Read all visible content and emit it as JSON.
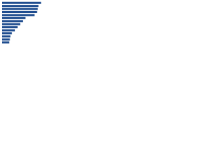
{
  "chart_data": {
    "type": "hbar",
    "categories": [
      null,
      null,
      null,
      null,
      null,
      null,
      null,
      null,
      null,
      null,
      null,
      null,
      null,
      null
    ],
    "values": [
      60,
      56,
      55,
      54,
      50,
      36,
      32,
      28,
      24,
      20,
      15,
      13,
      12,
      11
    ],
    "color": "#1f4d8f",
    "xlim": [
      0,
      100
    ]
  }
}
